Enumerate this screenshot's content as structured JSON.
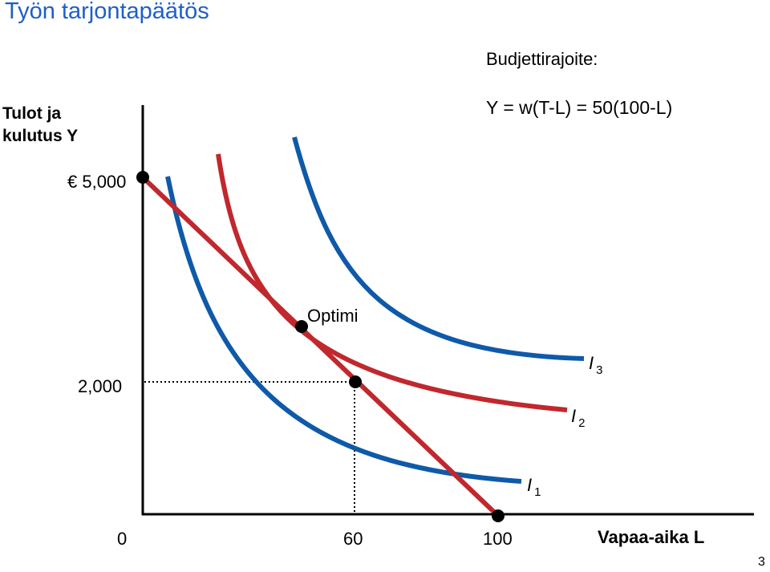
{
  "slide": {
    "title": "Työn tarjontapäätös",
    "page_number": "3"
  },
  "axes": {
    "y_title": "Tulot ja\nkulutus Y",
    "x_title": "Vapaa-aika L",
    "y_ticks": [
      "€ 5,000",
      "2,000"
    ],
    "x_ticks": [
      "0",
      "60",
      "100"
    ]
  },
  "budget": {
    "heading": "Budjettirajoite:",
    "equation": "Y = w(T-L) = 50(100-L)",
    "color": "#c0282d"
  },
  "optimum": {
    "label": "Optimi"
  },
  "curves": [
    {
      "id": "I1",
      "symbol": "I",
      "index": "1",
      "color": "#0f5aa8"
    },
    {
      "id": "I2",
      "symbol": "I",
      "index": "2",
      "color": "#c0282d"
    },
    {
      "id": "I3",
      "symbol": "I",
      "index": "3",
      "color": "#0f5aa8"
    }
  ]
}
